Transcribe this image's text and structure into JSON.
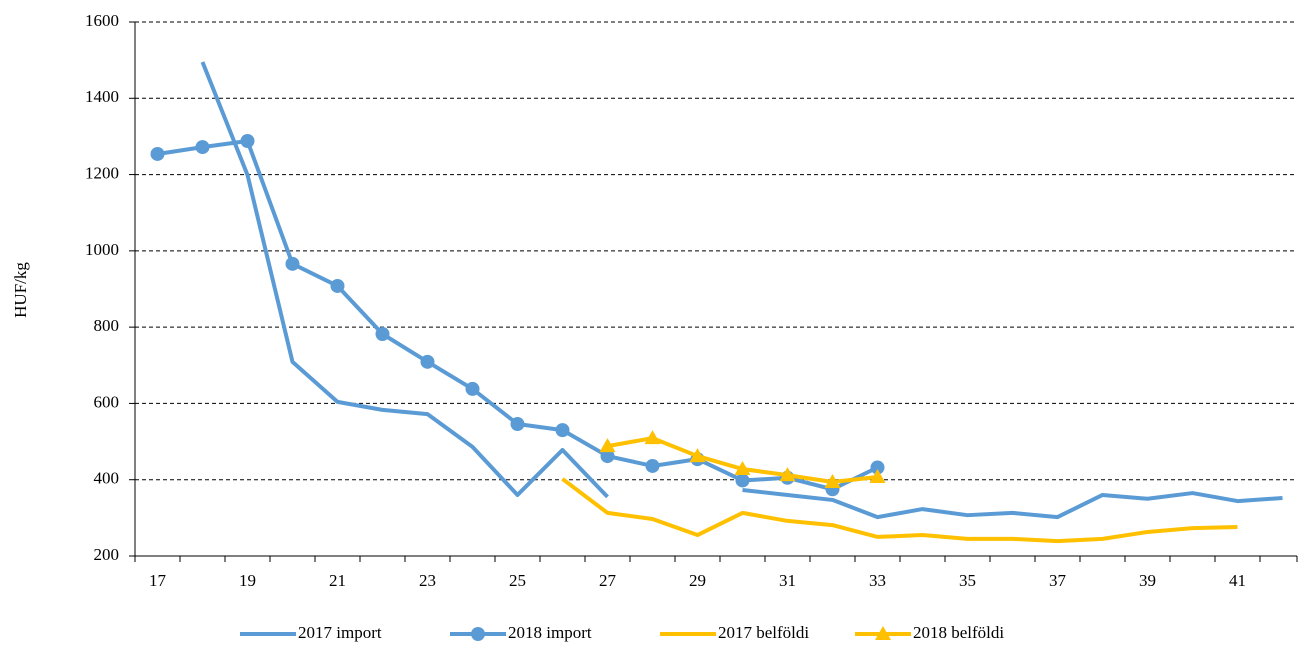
{
  "chart_data": {
    "type": "line",
    "y_label": "HUF/kg",
    "categories": [
      "17",
      null,
      "19",
      null,
      "21",
      null,
      "23",
      null,
      "25",
      null,
      "27",
      null,
      "29",
      null,
      "31",
      null,
      "33",
      null,
      "35",
      null,
      "37",
      null,
      "39",
      null,
      "41",
      null
    ],
    "series": [
      {
        "name": "2017 import",
        "color": "#5b9bd5",
        "marker": "none",
        "values": [
          null,
          1495,
          1199,
          709,
          604,
          583,
          572,
          486,
          360,
          478,
          355,
          null,
          null,
          373,
          360,
          347,
          302,
          323,
          307,
          313,
          302,
          360,
          350,
          365,
          344,
          352
        ]
      },
      {
        "name": "2018 import",
        "color": "#5b9bd5",
        "marker": "circle",
        "values": [
          1254,
          1272,
          1288,
          966,
          908,
          782,
          709,
          638,
          546,
          530,
          462,
          436,
          454,
          398,
          405,
          375,
          432,
          null,
          null,
          null,
          null,
          null,
          null,
          null,
          null,
          null
        ]
      },
      {
        "name": "2017 belföldi",
        "color": "#ffc000",
        "marker": "none",
        "values": [
          null,
          null,
          null,
          null,
          null,
          null,
          null,
          null,
          null,
          402,
          313,
          297,
          255,
          313,
          292,
          281,
          250,
          255,
          245,
          245,
          239,
          245,
          263,
          273,
          276,
          null
        ]
      },
      {
        "name": "2018 belföldi",
        "color": "#ffc000",
        "marker": "triangle",
        "values": [
          null,
          null,
          null,
          null,
          null,
          null,
          null,
          null,
          null,
          null,
          488,
          509,
          462,
          428,
          412,
          394,
          407,
          null,
          null,
          null,
          null,
          null,
          null,
          null,
          null,
          null
        ]
      }
    ],
    "ylim": [
      200,
      1600
    ],
    "yticks": [
      200,
      400,
      600,
      800,
      1000,
      1200,
      1400,
      1600
    ],
    "grid": true,
    "legend": "bottom"
  }
}
